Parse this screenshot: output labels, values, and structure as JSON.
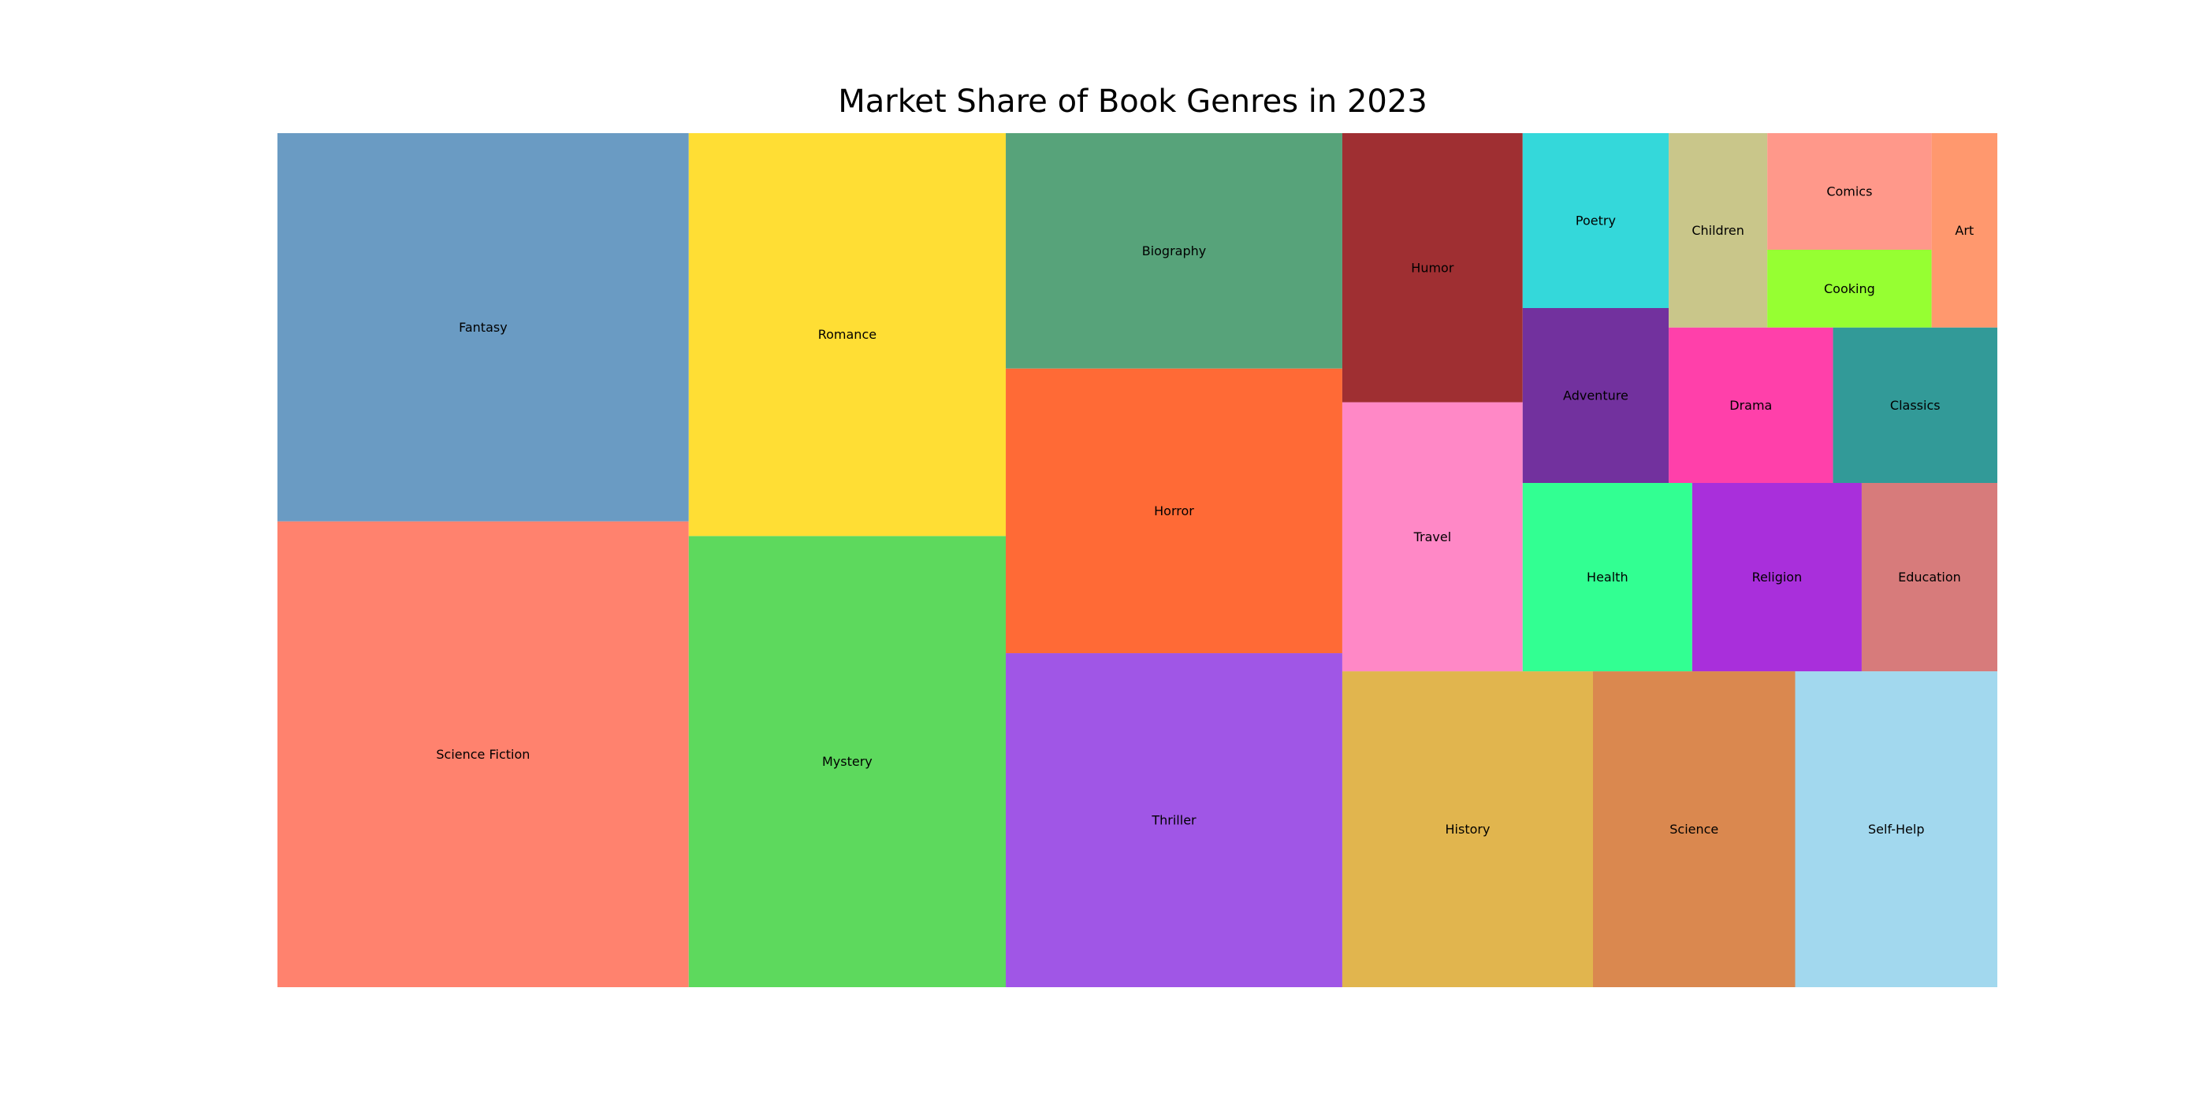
{
  "chart_data": {
    "type": "treemap",
    "title": "Market Share of Book Genres in 2023",
    "items": [
      {
        "label": "Science Fiction",
        "value": 15,
        "color": "#FF826E"
      },
      {
        "label": "Fantasy",
        "value": 12.5,
        "color": "#6A9BC3"
      },
      {
        "label": "Mystery",
        "value": 11.2,
        "color": "#5DD95D"
      },
      {
        "label": "Romance",
        "value": 10,
        "color": "#FFDE34"
      },
      {
        "label": "Thriller",
        "value": 8.8,
        "color": "#A056E6"
      },
      {
        "label": "Horror",
        "value": 7.5,
        "color": "#FF6A36"
      },
      {
        "label": "Biography",
        "value": 6.2,
        "color": "#57A37A"
      },
      {
        "label": "History",
        "value": 6.2,
        "color": "#E1B54E"
      },
      {
        "label": "Science",
        "value": 5,
        "color": "#DA884F"
      },
      {
        "label": "Self-Help",
        "value": 5,
        "color": "#A2D8EE"
      },
      {
        "label": "Travel",
        "value": 3.8,
        "color": "#FF88C6"
      },
      {
        "label": "Humor",
        "value": 3.8,
        "color": "#9F2F32"
      },
      {
        "label": "Health",
        "value": 2.5,
        "color": "#32FF92"
      },
      {
        "label": "Religion",
        "value": 2.5,
        "color": "#A92FDB"
      },
      {
        "label": "Education",
        "value": 2,
        "color": "#D77B7B"
      },
      {
        "label": "Adventure",
        "value": 2,
        "color": "#72319E"
      },
      {
        "label": "Poetry",
        "value": 2,
        "color": "#34D8DA"
      },
      {
        "label": "Drama",
        "value": 2,
        "color": "#FF40AA"
      },
      {
        "label": "Classics",
        "value": 2,
        "color": "#329A98"
      },
      {
        "label": "Children",
        "value": 1.5,
        "color": "#C9C68A"
      },
      {
        "label": "Cooking",
        "value": 1,
        "color": "#96FF32"
      },
      {
        "label": "Comics",
        "value": 1.5,
        "color": "#FF988A"
      },
      {
        "label": "Art",
        "value": 1,
        "color": "#FF986E"
      }
    ]
  }
}
